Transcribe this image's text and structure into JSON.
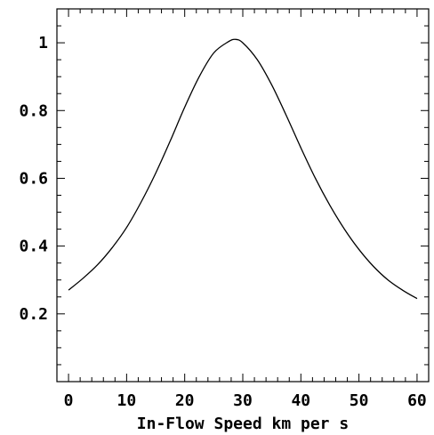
{
  "chart_data": {
    "type": "line",
    "title": "",
    "xlabel": "In-Flow Speed km per s",
    "ylabel": "",
    "xlim": [
      -2,
      62
    ],
    "ylim": [
      0,
      1.1
    ],
    "x_ticks": [
      0,
      10,
      20,
      30,
      40,
      50,
      60
    ],
    "x_tick_labels": [
      "0",
      "10",
      "20",
      "30",
      "40",
      "50",
      "60"
    ],
    "y_ticks": [
      0.2,
      0.4,
      0.6,
      0.8,
      1.0
    ],
    "y_tick_labels": [
      "0.2",
      "0.4",
      "0.6",
      "0.8",
      "1"
    ],
    "grid": false,
    "legend": "none",
    "line_color": "#000000",
    "series": [
      {
        "x": [
          0,
          2.5,
          5,
          7.5,
          10,
          12.5,
          15,
          17.5,
          20,
          22.5,
          25,
          27.5,
          28.7,
          30,
          32.5,
          35,
          37.5,
          40,
          42.5,
          45,
          47.5,
          50,
          52.5,
          55,
          57.5,
          60
        ],
        "values": [
          0.27,
          0.305,
          0.345,
          0.395,
          0.455,
          0.53,
          0.615,
          0.71,
          0.81,
          0.9,
          0.97,
          1.003,
          1.01,
          1.0,
          0.95,
          0.875,
          0.785,
          0.69,
          0.6,
          0.52,
          0.45,
          0.39,
          0.34,
          0.3,
          0.27,
          0.245
        ]
      }
    ]
  }
}
